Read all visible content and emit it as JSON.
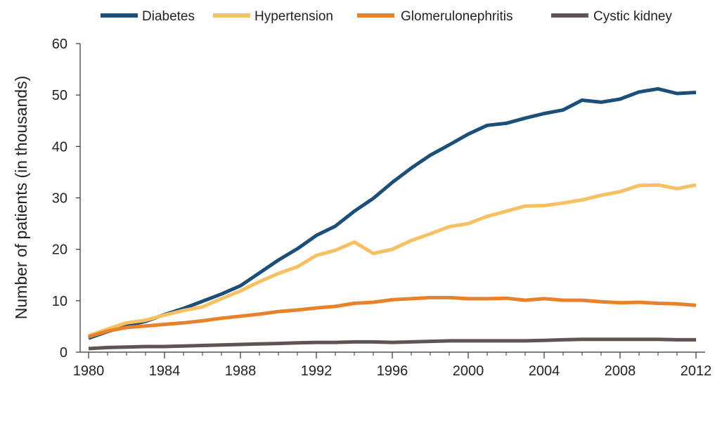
{
  "chart_data": {
    "type": "line",
    "title": "",
    "xlabel": "",
    "ylabel": "Number of patients (in thousands)",
    "xlim": [
      1980,
      2012
    ],
    "ylim": [
      0,
      60
    ],
    "xticks": [
      1980,
      1984,
      1988,
      1992,
      1996,
      2000,
      2004,
      2008,
      2012
    ],
    "yticks": [
      0,
      10,
      20,
      30,
      40,
      50,
      60
    ],
    "grid": false,
    "legend_position": "top",
    "x": [
      1980,
      1981,
      1982,
      1983,
      1984,
      1985,
      1986,
      1987,
      1988,
      1989,
      1990,
      1991,
      1992,
      1993,
      1994,
      1995,
      1996,
      1997,
      1998,
      1999,
      2000,
      2001,
      2002,
      2003,
      2004,
      2005,
      2006,
      2007,
      2008,
      2009,
      2010,
      2011,
      2012
    ],
    "series": [
      {
        "name": "Diabetes",
        "color": "#1b4f7a",
        "values": [
          2.7,
          4.0,
          5.1,
          6.0,
          7.3,
          8.5,
          9.9,
          11.3,
          12.9,
          15.4,
          17.9,
          20.1,
          22.7,
          24.5,
          27.4,
          29.9,
          33.0,
          35.8,
          38.3,
          40.3,
          42.4,
          44.1,
          44.5,
          45.5,
          46.4,
          47.1,
          49.0,
          48.6,
          49.2,
          50.6,
          51.2,
          50.3,
          50.5
        ]
      },
      {
        "name": "Hypertension",
        "color": "#f7c062",
        "values": [
          3.2,
          4.5,
          5.7,
          6.2,
          7.2,
          8.1,
          8.8,
          10.4,
          11.9,
          13.7,
          15.3,
          16.6,
          18.8,
          19.8,
          21.4,
          19.2,
          20.0,
          21.7,
          23.0,
          24.4,
          25.0,
          26.4,
          27.4,
          28.4,
          28.5,
          29.0,
          29.6,
          30.5,
          31.2,
          32.4,
          32.5,
          31.8,
          32.5
        ]
      },
      {
        "name": "Glomerulonephritis",
        "color": "#e8822a",
        "values": [
          3.0,
          4.1,
          4.8,
          5.1,
          5.4,
          5.7,
          6.1,
          6.6,
          7.0,
          7.4,
          7.9,
          8.2,
          8.6,
          8.9,
          9.5,
          9.7,
          10.2,
          10.4,
          10.6,
          10.6,
          10.4,
          10.4,
          10.5,
          10.1,
          10.4,
          10.1,
          10.1,
          9.8,
          9.6,
          9.7,
          9.5,
          9.4,
          9.1
        ]
      },
      {
        "name": "Cystic kidney",
        "color": "#5e5552",
        "values": [
          0.7,
          0.9,
          1.0,
          1.1,
          1.1,
          1.2,
          1.3,
          1.4,
          1.5,
          1.6,
          1.7,
          1.8,
          1.9,
          1.9,
          2.0,
          2.0,
          1.9,
          2.0,
          2.1,
          2.2,
          2.2,
          2.2,
          2.2,
          2.2,
          2.3,
          2.4,
          2.5,
          2.5,
          2.5,
          2.5,
          2.5,
          2.4,
          2.4
        ]
      }
    ]
  }
}
